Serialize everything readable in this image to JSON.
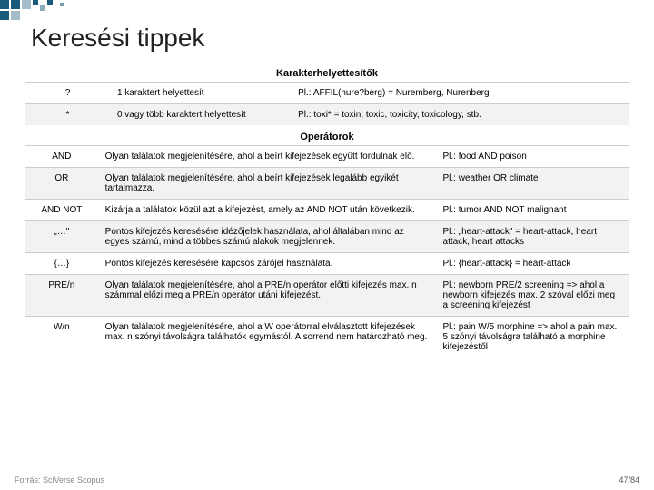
{
  "title": "Keresési tippek",
  "section1_label": "Karakterhelyettesítők",
  "wildcards": [
    {
      "sym": "?",
      "desc": "1 karaktert helyettesít",
      "ex": "Pl.: AFFIL(nure?berg) = Nuremberg, Nurenberg"
    },
    {
      "sym": "*",
      "desc": "0 vagy több karaktert helyettesít",
      "ex": "Pl.: toxi* = toxin, toxic, toxicity, toxicology, stb."
    }
  ],
  "section2_label": "Operátorok",
  "ops": [
    {
      "op": "AND",
      "desc": "Olyan találatok megjelenítésére, ahol a beírt kifejezések együtt fordulnak elő.",
      "ex": "Pl.: food AND poison"
    },
    {
      "op": "OR",
      "desc": "Olyan találatok megjelenítésére, ahol a beírt kifejezések legalább egyikét tartalmazza.",
      "ex": "Pl.: weather OR climate"
    },
    {
      "op": "AND NOT",
      "desc": "Kizárja a találatok közül azt a kifejezést, amely az AND NOT után következik.",
      "ex": "Pl.: tumor AND NOT malignant"
    },
    {
      "op": "„…\"",
      "desc": "Pontos kifejezés keresésére idézőjelek használata, ahol általában mind az egyes számú, mind a többes számú alakok megjelennek.",
      "ex": "Pl.: „heart-attack\" = heart-attack, heart attack, heart attacks"
    },
    {
      "op": "{…}",
      "desc": "Pontos kifejezés keresésére kapcsos zárójel használata.",
      "ex": "Pl.: {heart-attack} = heart-attack"
    },
    {
      "op": "PRE/n",
      "desc": "Olyan találatok megjelenítésére, ahol a PRE/n operátor előtti kifejezés max. n számmal előzi meg a PRE/n operátor utáni kifejezést.",
      "ex": "Pl.: newborn PRE/2 screening => ahol a newborn kifejezés max. 2 szóval előzi meg a screening kifejezést"
    },
    {
      "op": "W/n",
      "desc": "Olyan találatok megjelenítésére, ahol a W operátorral elválasztott kifejezések max. n szónyi távolságra találhatók egymástól. A sorrend nem határozható meg.",
      "ex": "Pl.: pain W/5 morphine => ahol a pain max. 5 szónyi távolságra található a morphine kifejezéstől"
    }
  ],
  "footer_src": "Forrás: SciVerse Scopus",
  "footer_page": "47/84",
  "colors": {
    "deco": "#1a5a7a",
    "row_alt": "#f2f2f2",
    "border": "#cccccc",
    "text": "#000000",
    "bg": "#ffffff"
  }
}
